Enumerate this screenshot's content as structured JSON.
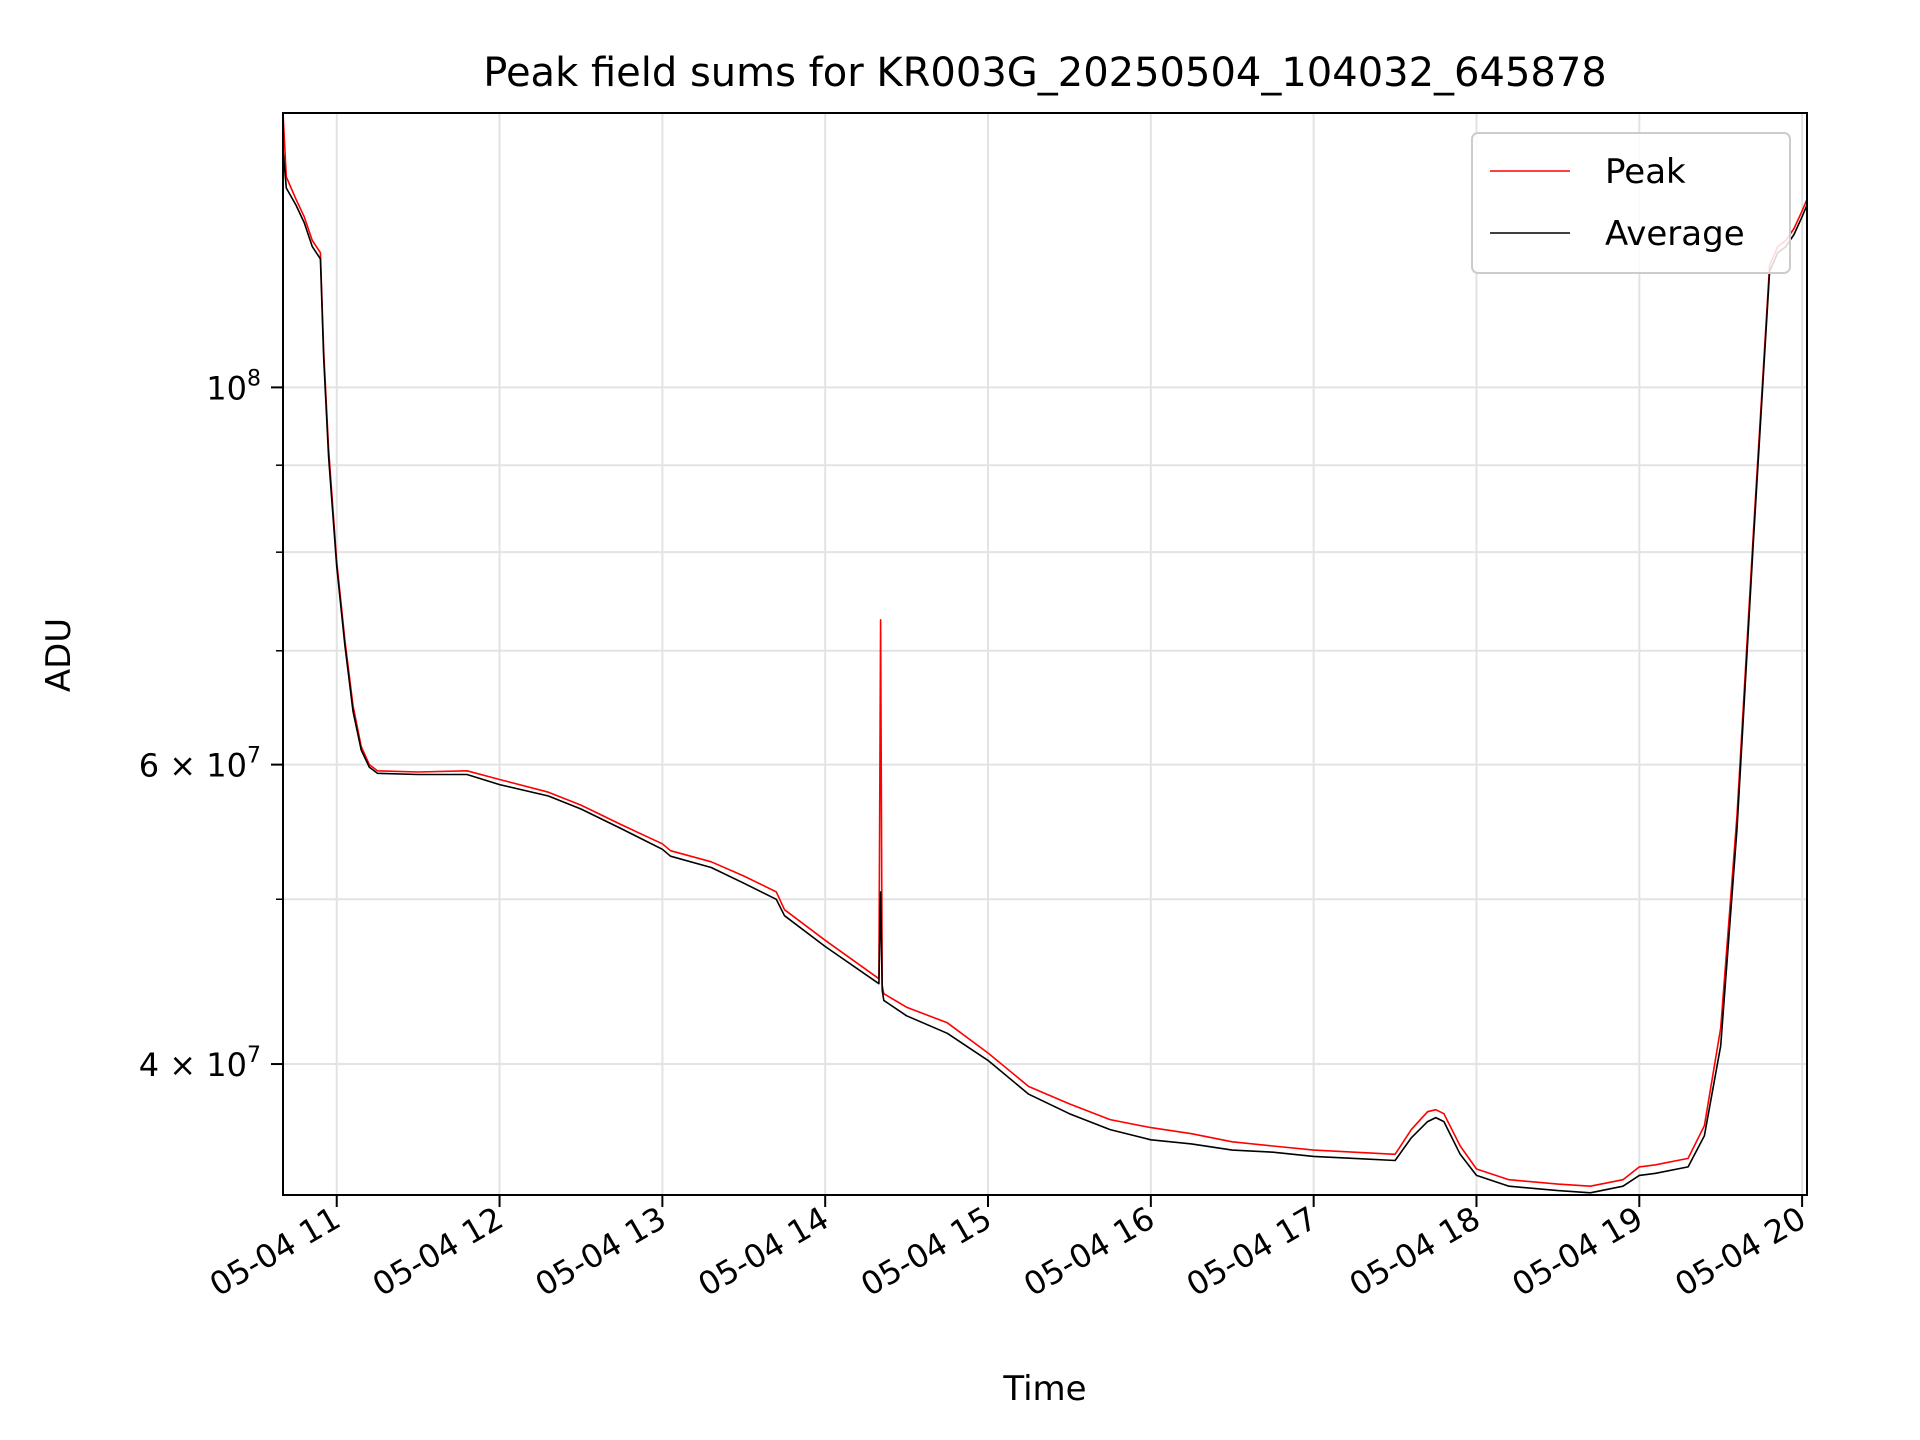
{
  "chart_data": {
    "type": "line",
    "title": "Peak field sums for KR003G_20250504_104032_645878",
    "xlabel": "Time",
    "ylabel": "ADU",
    "yscale": "log",
    "xlim": [
      10.67,
      20.03
    ],
    "ylim": [
      33500000,
      145000000
    ],
    "x_unit": "hour of 2025-05-04",
    "x_ticks": [
      {
        "value": 11,
        "label": "05-04 11"
      },
      {
        "value": 12,
        "label": "05-04 12"
      },
      {
        "value": 13,
        "label": "05-04 13"
      },
      {
        "value": 14,
        "label": "05-04 14"
      },
      {
        "value": 15,
        "label": "05-04 15"
      },
      {
        "value": 16,
        "label": "05-04 16"
      },
      {
        "value": 17,
        "label": "05-04 17"
      },
      {
        "value": 18,
        "label": "05-04 18"
      },
      {
        "value": 19,
        "label": "05-04 19"
      },
      {
        "value": 20,
        "label": "05-04 20"
      }
    ],
    "y_major_ticks": [
      {
        "value": 40000000,
        "base": "4 × 10",
        "exp": "7"
      },
      {
        "value": 60000000,
        "base": "6 × 10",
        "exp": "7"
      },
      {
        "value": 100000000,
        "base": "10",
        "exp": "8"
      }
    ],
    "y_minor_ticks": [
      50000000,
      70000000,
      80000000,
      90000000
    ],
    "grid": true,
    "legend_position": "top-right",
    "series": [
      {
        "name": "Peak",
        "color": "#ff0000",
        "x": [
          10.67,
          10.69,
          10.72,
          10.75,
          10.8,
          10.85,
          10.9,
          10.92,
          10.95,
          11.0,
          11.05,
          11.1,
          11.15,
          11.2,
          11.25,
          11.5,
          11.8,
          12.0,
          12.3,
          12.5,
          12.75,
          13.0,
          13.05,
          13.3,
          13.5,
          13.7,
          13.75,
          14.0,
          14.33,
          14.34,
          14.35,
          14.36,
          14.5,
          14.75,
          15.0,
          15.25,
          15.5,
          15.75,
          16.0,
          16.25,
          16.5,
          16.75,
          17.0,
          17.25,
          17.5,
          17.6,
          17.7,
          17.75,
          17.8,
          17.9,
          18.0,
          18.2,
          18.5,
          18.7,
          18.9,
          19.0,
          19.1,
          19.3,
          19.4,
          19.5,
          19.6,
          19.7,
          19.8,
          19.85,
          19.9,
          19.95,
          20.0,
          20.03
        ],
        "values": [
          145000000,
          133000000,
          131000000,
          129000000,
          126000000,
          122000000,
          120000000,
          105000000,
          92000000,
          79000000,
          71000000,
          65000000,
          61500000,
          60000000,
          59500000,
          59400000,
          59500000,
          58800000,
          57800000,
          56800000,
          55300000,
          53900000,
          53400000,
          52600000,
          51600000,
          50500000,
          49300000,
          47300000,
          44900000,
          73000000,
          44500000,
          44000000,
          43200000,
          42300000,
          40600000,
          38800000,
          37900000,
          37100000,
          36700000,
          36400000,
          36000000,
          35800000,
          35600000,
          35500000,
          35400000,
          36600000,
          37500000,
          37600000,
          37400000,
          35800000,
          34700000,
          34200000,
          34000000,
          33900000,
          34200000,
          34800000,
          34900000,
          35200000,
          36800000,
          42000000,
          56000000,
          82000000,
          118000000,
          121000000,
          122000000,
          124000000,
          127000000,
          129000000
        ]
      },
      {
        "name": "Average",
        "color": "#000000",
        "x": [
          10.67,
          10.69,
          10.72,
          10.75,
          10.8,
          10.85,
          10.9,
          10.92,
          10.95,
          11.0,
          11.05,
          11.1,
          11.15,
          11.2,
          11.25,
          11.5,
          11.8,
          12.0,
          12.3,
          12.5,
          12.75,
          13.0,
          13.05,
          13.3,
          13.5,
          13.7,
          13.75,
          14.0,
          14.33,
          14.34,
          14.35,
          14.36,
          14.5,
          14.75,
          15.0,
          15.25,
          15.5,
          15.75,
          16.0,
          16.25,
          16.5,
          16.75,
          17.0,
          17.25,
          17.5,
          17.6,
          17.7,
          17.75,
          17.8,
          17.9,
          18.0,
          18.2,
          18.5,
          18.7,
          18.9,
          19.0,
          19.1,
          19.3,
          19.4,
          19.5,
          19.6,
          19.7,
          19.8,
          19.85,
          19.9,
          19.95,
          20.0,
          20.03
        ],
        "values": [
          138000000,
          131000000,
          129500000,
          128000000,
          125000000,
          121000000,
          119000000,
          104000000,
          91000000,
          78500000,
          70500000,
          64500000,
          61200000,
          59800000,
          59300000,
          59200000,
          59200000,
          58400000,
          57500000,
          56500000,
          55000000,
          53500000,
          53000000,
          52200000,
          51100000,
          50000000,
          48900000,
          46900000,
          44600000,
          50500000,
          44200000,
          43600000,
          42700000,
          41700000,
          40200000,
          38400000,
          37400000,
          36600000,
          36100000,
          35900000,
          35600000,
          35500000,
          35300000,
          35200000,
          35100000,
          36200000,
          37000000,
          37200000,
          37000000,
          35400000,
          34400000,
          33900000,
          33700000,
          33600000,
          33900000,
          34400000,
          34500000,
          34800000,
          36300000,
          41000000,
          55000000,
          81000000,
          117000000,
          120000000,
          121000000,
          123000000,
          126000000,
          128000000
        ]
      }
    ]
  }
}
